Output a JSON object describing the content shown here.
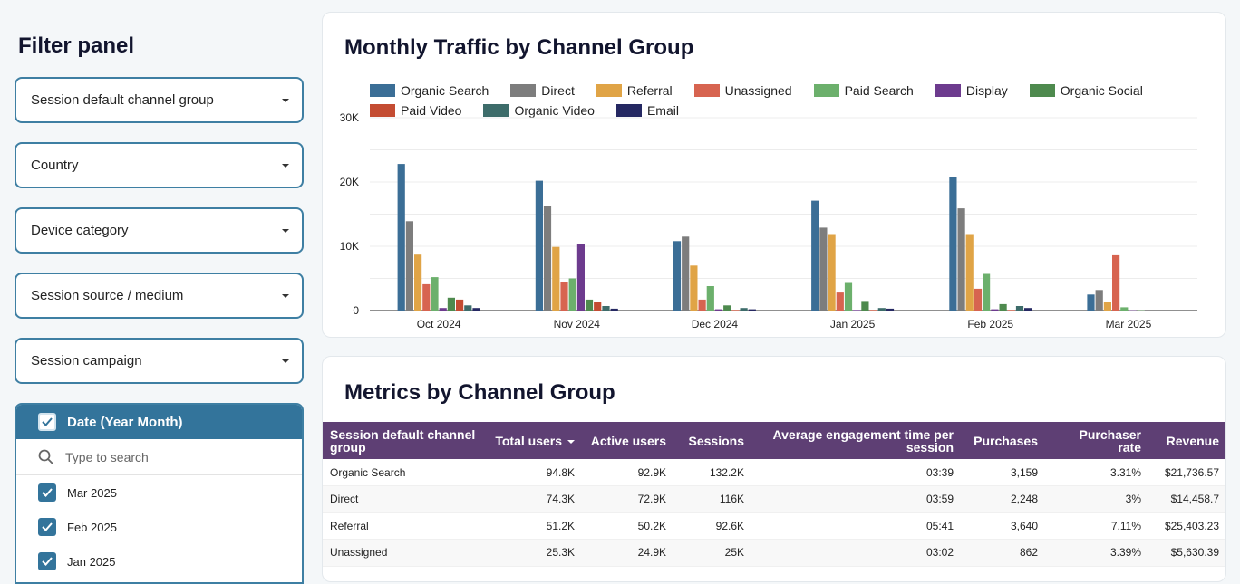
{
  "sidebar": {
    "title": "Filter panel",
    "filters": [
      {
        "label": "Session default channel group"
      },
      {
        "label": "Country"
      },
      {
        "label": "Device category"
      },
      {
        "label": "Session source / medium"
      },
      {
        "label": "Session campaign"
      }
    ],
    "date_filter": {
      "header": "Date (Year Month)",
      "search_placeholder": "Type to search",
      "items": [
        "Mar 2025",
        "Feb 2025",
        "Jan 2025"
      ]
    }
  },
  "traffic_card": {
    "title": "Monthly Traffic by Channel Group"
  },
  "metrics_card": {
    "title": "Metrics by Channel Group"
  },
  "chart_data": {
    "type": "bar",
    "title": "Monthly Traffic by Channel Group",
    "categories": [
      "Oct 2024",
      "Nov 2024",
      "Dec 2024",
      "Jan 2025",
      "Feb 2025",
      "Mar 2025"
    ],
    "y_ticks": [
      "0",
      "10K",
      "20K",
      "30K"
    ],
    "ylim": [
      0,
      30000
    ],
    "series": [
      {
        "name": "Organic Search",
        "color": "#3b6e96",
        "values": [
          22800,
          20200,
          10800,
          17100,
          20800,
          2500
        ]
      },
      {
        "name": "Direct",
        "color": "#7d7d7d",
        "values": [
          13900,
          16300,
          11500,
          12900,
          15900,
          3200
        ]
      },
      {
        "name": "Referral",
        "color": "#e0a446",
        "values": [
          8700,
          9900,
          7000,
          11900,
          11900,
          1300
        ]
      },
      {
        "name": "Unassigned",
        "color": "#d76450",
        "values": [
          4100,
          4400,
          1700,
          2800,
          3400,
          8600
        ]
      },
      {
        "name": "Paid Search",
        "color": "#6cb06c",
        "values": [
          5200,
          5000,
          3800,
          4300,
          5700,
          500
        ]
      },
      {
        "name": "Display",
        "color": "#6d3b8e",
        "values": [
          400,
          10400,
          200,
          100,
          200,
          50
        ]
      },
      {
        "name": "Organic Social",
        "color": "#4e8a4e",
        "values": [
          2000,
          1700,
          800,
          1500,
          1000,
          50
        ]
      },
      {
        "name": "Paid Video",
        "color": "#c44c32",
        "values": [
          1700,
          1400,
          100,
          100,
          100,
          0
        ]
      },
      {
        "name": "Organic Video",
        "color": "#3d6c6a",
        "values": [
          800,
          700,
          400,
          400,
          700,
          0
        ]
      },
      {
        "name": "Email",
        "color": "#252862",
        "values": [
          400,
          300,
          200,
          300,
          400,
          0
        ]
      }
    ]
  },
  "table": {
    "columns": [
      "Session default channel group",
      "Total users",
      "Active users",
      "Sessions",
      "Average engagement time per session",
      "Purchases",
      "Purchaser rate",
      "Revenue"
    ],
    "rows": [
      [
        "Organic Search",
        "94.8K",
        "92.9K",
        "132.2K",
        "03:39",
        "3,159",
        "3.31%",
        "$21,736.57"
      ],
      [
        "Direct",
        "74.3K",
        "72.9K",
        "116K",
        "03:59",
        "2,248",
        "3%",
        "$14,458.7"
      ],
      [
        "Referral",
        "51.2K",
        "50.2K",
        "92.6K",
        "05:41",
        "3,640",
        "7.11%",
        "$25,403.23"
      ],
      [
        "Unassigned",
        "25.3K",
        "24.9K",
        "25K",
        "03:02",
        "862",
        "3.39%",
        "$5,630.39"
      ]
    ]
  }
}
